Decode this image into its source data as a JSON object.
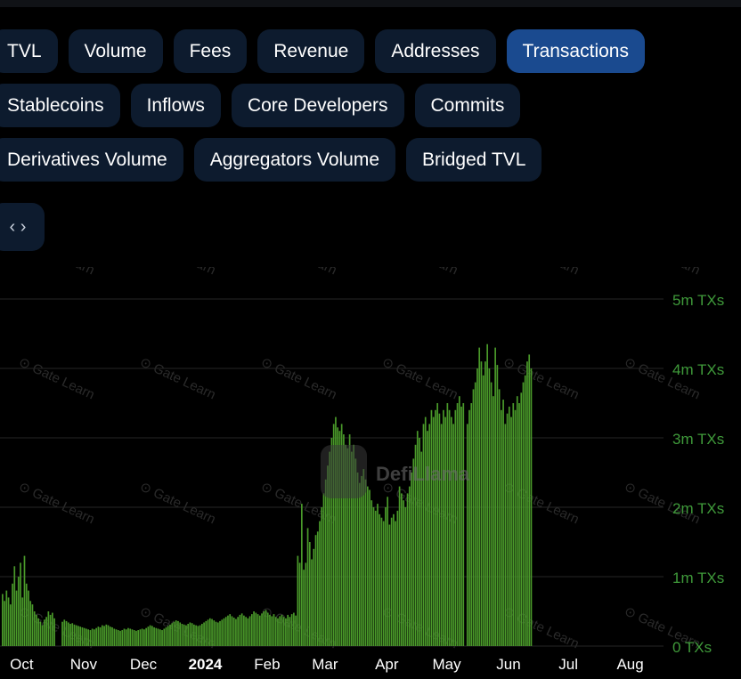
{
  "tabs_row1": [
    "TVL",
    "Volume",
    "Fees",
    "Revenue",
    "Addresses",
    "Transactions"
  ],
  "tabs_row2": [
    "Stablecoins",
    "Inflows",
    "Core Developers",
    "Commits"
  ],
  "tabs_row3": [
    "Derivatives Volume",
    "Aggregators Volume",
    "Bridged TVL"
  ],
  "active_tab": "Transactions",
  "embed_icon": "code-icon",
  "watermark": "Gate Learn",
  "logo_text": "DefiLlama",
  "colors": {
    "bar": "#4a9a2a",
    "axis_label": "#3f9a3a",
    "pill": "#0d1b2e",
    "pill_active": "#1a4a8f",
    "grid": "#262626"
  },
  "chart_data": {
    "type": "bar",
    "title": "",
    "xlabel": "",
    "ylabel": "",
    "ylim": [
      0,
      5000000
    ],
    "y_ticks": [
      {
        "value": 0,
        "label": "0 TXs"
      },
      {
        "value": 1000000,
        "label": "1m TXs"
      },
      {
        "value": 2000000,
        "label": "2m TXs"
      },
      {
        "value": 3000000,
        "label": "3m TXs"
      },
      {
        "value": 4000000,
        "label": "4m TXs"
      },
      {
        "value": 5000000,
        "label": "5m TXs"
      }
    ],
    "x_ticks": [
      {
        "date": "2023-10-01",
        "label": "Oct",
        "bold": false
      },
      {
        "date": "2023-11-01",
        "label": "Nov",
        "bold": false
      },
      {
        "date": "2023-12-01",
        "label": "Dec",
        "bold": false
      },
      {
        "date": "2024-01-01",
        "label": "2024",
        "bold": true
      },
      {
        "date": "2024-02-01",
        "label": "Feb",
        "bold": false
      },
      {
        "date": "2024-03-01",
        "label": "Mar",
        "bold": false
      },
      {
        "date": "2024-04-01",
        "label": "Apr",
        "bold": false
      },
      {
        "date": "2024-05-01",
        "label": "May",
        "bold": false
      },
      {
        "date": "2024-06-01",
        "label": "Jun",
        "bold": false
      },
      {
        "date": "2024-07-01",
        "label": "Jul",
        "bold": false
      },
      {
        "date": "2024-08-01",
        "label": "Aug",
        "bold": false
      }
    ],
    "series": [
      {
        "start_date": "2023-09-21",
        "values": [
          750000,
          650000,
          800000,
          700000,
          600000,
          900000,
          1150000,
          800000,
          1000000,
          1200000,
          700000,
          1300000,
          900000,
          800000,
          650000,
          600000,
          500000,
          450000,
          400000,
          350000,
          300000,
          380000,
          420000,
          500000,
          450000,
          480000,
          400000,
          0,
          0,
          0,
          350000,
          380000,
          360000,
          340000,
          320000,
          330000,
          310000,
          300000,
          290000,
          280000,
          270000,
          260000,
          250000,
          240000,
          230000,
          250000,
          240000,
          260000,
          280000,
          270000,
          300000,
          290000,
          310000,
          300000,
          280000,
          270000,
          250000,
          240000,
          230000,
          220000,
          230000,
          250000,
          240000,
          260000,
          250000,
          240000,
          230000,
          220000,
          230000,
          240000,
          250000,
          240000,
          260000,
          280000,
          300000,
          290000,
          270000,
          260000,
          250000,
          240000,
          230000,
          250000,
          270000,
          290000,
          310000,
          330000,
          350000,
          370000,
          360000,
          340000,
          320000,
          310000,
          300000,
          320000,
          340000,
          330000,
          310000,
          300000,
          290000,
          300000,
          320000,
          340000,
          360000,
          380000,
          400000,
          390000,
          370000,
          350000,
          340000,
          360000,
          380000,
          400000,
          420000,
          440000,
          460000,
          430000,
          410000,
          390000,
          420000,
          450000,
          470000,
          440000,
          420000,
          400000,
          430000,
          460000,
          500000,
          480000,
          460000,
          440000,
          470000,
          500000,
          520000,
          480000,
          450000,
          430000,
          460000,
          420000,
          400000,
          430000,
          450000,
          420000,
          400000,
          450000,
          420000,
          460000,
          480000,
          440000,
          1300000,
          1200000,
          2050000,
          1100000,
          1200000,
          1700000,
          1500000,
          1250000,
          1400000,
          1600000,
          1650000,
          1800000,
          2000000,
          2200000,
          2400000,
          2600000,
          2800000,
          3000000,
          3200000,
          3300000,
          3150000,
          3100000,
          3200000,
          3050000,
          2900000,
          2850000,
          3050000,
          2800000,
          2900000,
          2700000,
          2500000,
          2350000,
          2450000,
          2550000,
          2400000,
          2300000,
          2250000,
          2100000,
          2000000,
          1950000,
          2050000,
          1900000,
          1850000,
          1800000,
          2000000,
          2150000,
          1750000,
          1850000,
          1900000,
          1800000,
          1950000,
          2300000,
          2200000,
          2100000,
          2000000,
          2200000,
          2300000,
          2500000,
          2700000,
          2900000,
          3100000,
          3000000,
          2800000,
          3200000,
          3300000,
          3100000,
          3200000,
          3400000,
          3300000,
          3400000,
          3500000,
          3350000,
          3200000,
          3400000,
          3300000,
          3500000,
          3400000,
          3300000,
          3200000,
          3400000,
          3500000,
          3600000,
          3450000,
          3500000,
          0,
          3200000,
          3400000,
          3500000,
          3700000,
          3800000,
          4000000,
          4300000,
          4100000,
          3900000,
          4100000,
          4350000,
          4000000,
          3800000,
          3600000,
          4300000,
          4050000,
          3700000,
          3400000,
          3550000,
          3200000,
          3350000,
          3450000,
          3300000,
          3500000,
          3400000,
          3600000,
          3500000,
          3650000,
          3800000,
          3900000,
          4100000,
          4200000,
          4000000
        ]
      }
    ]
  }
}
